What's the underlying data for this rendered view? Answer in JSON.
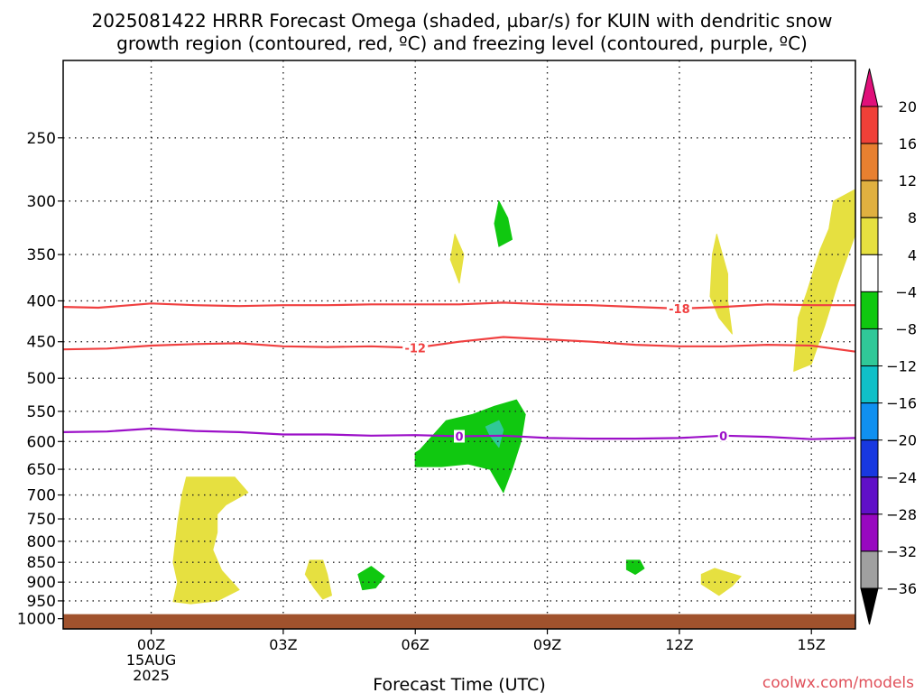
{
  "title_line1": "2025081422 HRRR Forecast Omega (shaded, µbar/s) for KUIN with dendritic snow",
  "title_line2": "growth region (contoured, red, ºC) and freezing level (contoured, purple, ºC)",
  "watermark": "coolwx.com/models",
  "chart_data": {
    "type": "area",
    "xlabel": "Forecast Time (UTC)",
    "x_range_hours": [
      -2,
      16
    ],
    "y_range_hPa": [
      200,
      1030
    ],
    "y_scale": "log",
    "xticks": [
      {
        "hour": 0,
        "label": "00Z",
        "sub1": "15AUG",
        "sub2": "2025"
      },
      {
        "hour": 3,
        "label": "03Z"
      },
      {
        "hour": 6,
        "label": "06Z"
      },
      {
        "hour": 9,
        "label": "09Z"
      },
      {
        "hour": 12,
        "label": "12Z"
      },
      {
        "hour": 15,
        "label": "15Z"
      }
    ],
    "yticks": [
      250,
      300,
      350,
      400,
      450,
      500,
      550,
      600,
      650,
      700,
      750,
      800,
      850,
      900,
      950,
      1000
    ],
    "grid": true,
    "ground_color": "#a0522d",
    "colorbar": {
      "labels": [
        "20",
        "16",
        "12",
        "8",
        "4",
        "-4",
        "-8",
        "-12",
        "-16",
        "-20",
        "-24",
        "-28",
        "-32",
        "-36"
      ],
      "top_arrow_color": "#e0107a",
      "bottom_arrow_color": "#000000",
      "bins": [
        {
          "range": "16 to 20",
          "color": "#f04038"
        },
        {
          "range": "12 to 16",
          "color": "#e88030"
        },
        {
          "range": "8 to 12",
          "color": "#e0b040"
        },
        {
          "range": "4 to 8",
          "color": "#e6e040"
        },
        {
          "range": "-4 to 4",
          "color": "#ffffff"
        },
        {
          "range": "-8 to -4",
          "color": "#10c810"
        },
        {
          "range": "-12 to -8",
          "color": "#30c898"
        },
        {
          "range": "-16 to -12",
          "color": "#10c0c8"
        },
        {
          "range": "-20 to -16",
          "color": "#1090f0"
        },
        {
          "range": "-24 to -20",
          "color": "#1838e0"
        },
        {
          "range": "-28 to -24",
          "color": "#6010c8"
        },
        {
          "range": "-32 to -28",
          "color": "#9808c0"
        },
        {
          "range": "-36 to -32",
          "color": "#a0a0a0"
        }
      ]
    },
    "contours": [
      {
        "name": "-18 °C isotherm",
        "label": "-18",
        "color": "#f04040",
        "label_at_hour": 12,
        "points": [
          [
            -2,
            407
          ],
          [
            -1.2,
            408
          ],
          [
            0,
            403
          ],
          [
            1,
            405
          ],
          [
            2,
            406
          ],
          [
            3,
            405
          ],
          [
            4,
            405
          ],
          [
            5,
            404
          ],
          [
            6,
            404
          ],
          [
            7,
            404
          ],
          [
            8,
            402
          ],
          [
            9,
            404
          ],
          [
            10,
            405
          ],
          [
            11,
            407
          ],
          [
            12,
            409
          ],
          [
            13,
            407
          ],
          [
            14,
            404
          ],
          [
            15,
            405
          ],
          [
            16,
            405
          ]
        ]
      },
      {
        "name": "-12 °C isotherm",
        "label": "-12",
        "color": "#f04040",
        "label_at_hour": 6,
        "points": [
          [
            -2,
            460
          ],
          [
            -1,
            459
          ],
          [
            0,
            455
          ],
          [
            1,
            453
          ],
          [
            2,
            452
          ],
          [
            3,
            456
          ],
          [
            4,
            457
          ],
          [
            5,
            456
          ],
          [
            6,
            458
          ],
          [
            7,
            450
          ],
          [
            8,
            444
          ],
          [
            9,
            447
          ],
          [
            10,
            450
          ],
          [
            11,
            454
          ],
          [
            12,
            456
          ],
          [
            13,
            456
          ],
          [
            14,
            454
          ],
          [
            15,
            455
          ],
          [
            16,
            463
          ]
        ]
      },
      {
        "name": "0 °C isotherm",
        "label": "0",
        "color": "#9c10c8",
        "label_at_hour": 7,
        "points": [
          [
            -2,
            584
          ],
          [
            -1,
            583
          ],
          [
            0,
            578
          ],
          [
            1,
            582
          ],
          [
            2,
            584
          ],
          [
            3,
            588
          ],
          [
            4,
            588
          ],
          [
            5,
            590
          ],
          [
            6,
            589
          ],
          [
            7,
            591
          ],
          [
            8,
            590
          ],
          [
            9,
            594
          ],
          [
            10,
            595
          ],
          [
            11,
            595
          ],
          [
            12,
            594
          ],
          [
            13,
            590
          ],
          [
            14,
            592
          ],
          [
            15,
            596
          ],
          [
            16,
            594
          ]
        ]
      },
      {
        "name": "0 °C isotherm (second label)",
        "label": "0",
        "color": "#9c10c8",
        "label_at_hour": 13,
        "points": []
      }
    ],
    "shaded_regions": [
      {
        "range": "4 to 8",
        "color": "#e6e040",
        "points": [
          [
            0.5,
            952
          ],
          [
            0.6,
            900
          ],
          [
            0.5,
            850
          ],
          [
            0.6,
            760
          ],
          [
            0.7,
            700
          ],
          [
            0.8,
            665
          ],
          [
            1.9,
            665
          ],
          [
            2.2,
            695
          ],
          [
            1.7,
            720
          ],
          [
            1.5,
            740
          ],
          [
            1.5,
            780
          ],
          [
            1.4,
            820
          ],
          [
            1.6,
            870
          ],
          [
            2.0,
            920
          ],
          [
            1.5,
            950
          ],
          [
            0.9,
            958
          ]
        ]
      },
      {
        "range": "4 to 8",
        "color": "#e6e040",
        "points": [
          [
            3.6,
            845
          ],
          [
            3.9,
            845
          ],
          [
            4.0,
            880
          ],
          [
            4.1,
            935
          ],
          [
            3.9,
            945
          ],
          [
            3.7,
            915
          ],
          [
            3.5,
            880
          ]
        ]
      },
      {
        "range": "4 to 8",
        "color": "#e6e040",
        "points": [
          [
            6.9,
            330
          ],
          [
            7.1,
            350
          ],
          [
            7.0,
            380
          ],
          [
            6.8,
            355
          ]
        ]
      },
      {
        "range": "4 to 8",
        "color": "#e6e040",
        "points": [
          [
            12.85,
            330
          ],
          [
            13.1,
            370
          ],
          [
            13.1,
            400
          ],
          [
            13.2,
            440
          ],
          [
            12.9,
            420
          ],
          [
            12.7,
            395
          ],
          [
            12.75,
            350
          ]
        ]
      },
      {
        "range": "4 to 8",
        "color": "#e6e040",
        "points": [
          [
            12.5,
            880
          ],
          [
            12.8,
            865
          ],
          [
            13.1,
            875
          ],
          [
            13.4,
            885
          ],
          [
            13.2,
            910
          ],
          [
            12.9,
            935
          ],
          [
            12.5,
            905
          ]
        ]
      },
      {
        "range": "4 to 8",
        "color": "#e6e040",
        "points": [
          [
            15.5,
            300
          ],
          [
            16.0,
            290
          ],
          [
            16.0,
            330
          ],
          [
            15.6,
            380
          ],
          [
            15.3,
            430
          ],
          [
            15.0,
            480
          ],
          [
            14.6,
            490
          ],
          [
            14.7,
            420
          ],
          [
            14.9,
            390
          ],
          [
            15.2,
            345
          ],
          [
            15.4,
            325
          ]
        ]
      },
      {
        "range": "-8 to -4",
        "color": "#10c810",
        "points": [
          [
            7.9,
            300
          ],
          [
            8.1,
            315
          ],
          [
            8.2,
            335
          ],
          [
            7.9,
            342
          ],
          [
            7.8,
            320
          ]
        ]
      },
      {
        "range": "-8 to -4",
        "color": "#10c810",
        "points": [
          [
            6.1,
            615
          ],
          [
            6.7,
            565
          ],
          [
            7.3,
            555
          ],
          [
            7.8,
            542
          ],
          [
            8.3,
            532
          ],
          [
            8.5,
            555
          ],
          [
            8.4,
            600
          ],
          [
            8.2,
            650
          ],
          [
            8.0,
            695
          ],
          [
            7.7,
            650
          ],
          [
            7.2,
            640
          ],
          [
            6.6,
            645
          ],
          [
            6.0,
            645
          ],
          [
            6.0,
            620
          ]
        ]
      },
      {
        "range": "-12 to -8",
        "color": "#30c898",
        "points": [
          [
            7.6,
            575
          ],
          [
            7.9,
            565
          ],
          [
            8.0,
            580
          ],
          [
            7.9,
            610
          ],
          [
            7.7,
            590
          ]
        ]
      },
      {
        "range": "-8 to -4",
        "color": "#10c810",
        "points": [
          [
            4.7,
            880
          ],
          [
            5.0,
            860
          ],
          [
            5.3,
            885
          ],
          [
            5.1,
            915
          ],
          [
            4.8,
            920
          ]
        ]
      },
      {
        "range": "-8 to -4",
        "color": "#10c810",
        "points": [
          [
            10.8,
            845
          ],
          [
            11.1,
            845
          ],
          [
            11.2,
            865
          ],
          [
            11.0,
            880
          ],
          [
            10.8,
            868
          ]
        ]
      }
    ]
  }
}
